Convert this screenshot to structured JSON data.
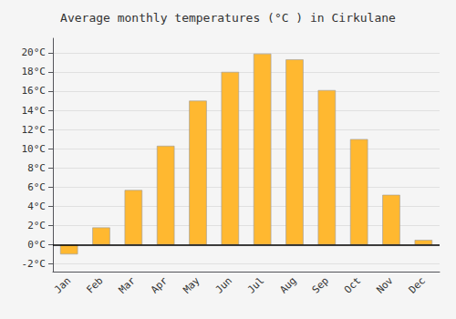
{
  "chart_data": {
    "type": "bar",
    "title": "Average monthly temperatures (°C ) in Cirkulane",
    "categories": [
      "Jan",
      "Feb",
      "Mar",
      "Apr",
      "May",
      "Jun",
      "Jul",
      "Aug",
      "Sep",
      "Oct",
      "Nov",
      "Dec"
    ],
    "values": [
      -1.0,
      1.8,
      5.7,
      10.3,
      15.0,
      18.0,
      19.9,
      19.3,
      16.1,
      11.0,
      5.2,
      0.5
    ],
    "color": "#FFB830",
    "ylim": [
      -2.8,
      21.5
    ],
    "yticks": [
      {
        "value": -2,
        "label": "-2°C"
      },
      {
        "value": 0,
        "label": "0°C"
      },
      {
        "value": 2,
        "label": "2°C"
      },
      {
        "value": 4,
        "label": "4°C"
      },
      {
        "value": 6,
        "label": "6°C"
      },
      {
        "value": 8,
        "label": "8°C"
      },
      {
        "value": 10,
        "label": "10°C"
      },
      {
        "value": 12,
        "label": "12°C"
      },
      {
        "value": 14,
        "label": "14°C"
      },
      {
        "value": 16,
        "label": "16°C"
      },
      {
        "value": 18,
        "label": "18°C"
      },
      {
        "value": 20,
        "label": "20°C"
      }
    ],
    "grid": true
  }
}
